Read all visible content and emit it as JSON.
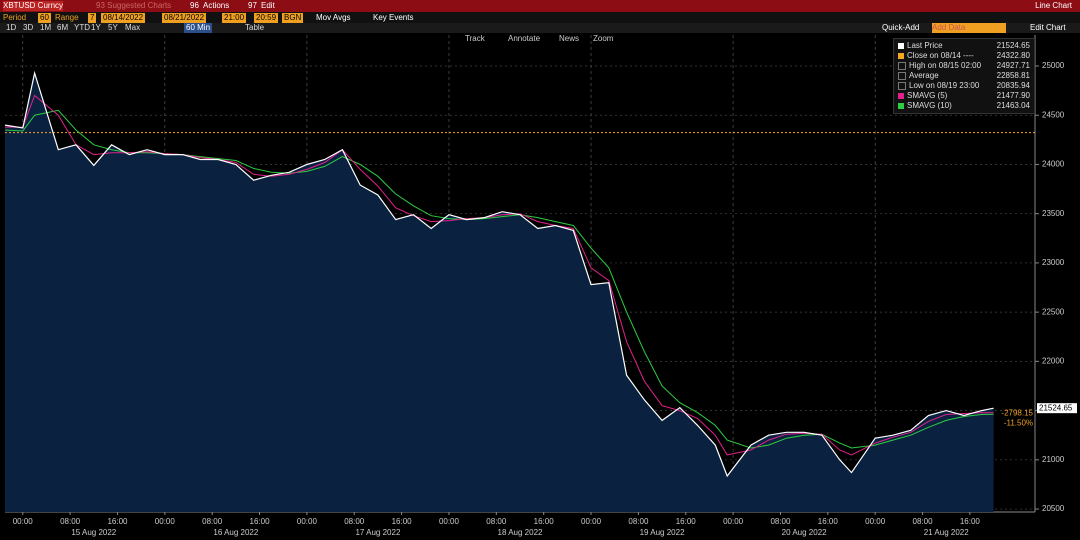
{
  "header": {
    "ticker": "XBTUSD Curncy",
    "suggested": "93 Suggested Charts",
    "actions_code": "96",
    "actions": "Actions",
    "edit_code": "97",
    "edit": "Edit",
    "view": "Line Chart"
  },
  "controls": {
    "period_label": "Period",
    "period": "60",
    "range_label": "Range",
    "range": "7",
    "start": "08/14/2022",
    "end": "08/21/2022",
    "start_time": "21:00",
    "end_time": "20:59",
    "source": "BGN",
    "mov_avgs": "Mov Avgs",
    "key_events": "Key Events",
    "periods": [
      "1D",
      "3D",
      "1M",
      "6M",
      "YTD",
      "1Y",
      "5Y",
      "Max"
    ],
    "interval": "60 Min",
    "table": "Table",
    "quick_add": "Quick-Add",
    "add_data": "Add Data",
    "edit_chart": "Edit Chart"
  },
  "tools": [
    "Track",
    "Annotate",
    "News",
    "Zoom"
  ],
  "chart_data": {
    "type": "line",
    "x": [
      -3,
      0,
      2,
      6,
      9,
      12,
      15,
      18,
      21,
      24,
      27,
      30,
      33,
      36,
      39,
      42,
      45,
      48,
      51,
      54,
      57,
      60,
      63,
      66,
      69,
      72,
      75,
      78,
      81,
      84,
      87,
      90,
      93,
      96,
      99,
      102,
      105,
      108,
      111,
      114,
      117,
      119,
      123,
      126,
      129,
      132,
      135,
      138,
      140,
      144,
      147,
      150,
      153,
      156,
      159,
      162,
      164
    ],
    "series": [
      {
        "name": "Last Price",
        "color": "#ffffff",
        "legend_value": "21524.65",
        "values": [
          24400,
          24370,
          24927.71,
          24150,
          24200,
          23990,
          24200,
          24100,
          24150,
          24100,
          24100,
          24050,
          24050,
          24000,
          23840,
          23890,
          23920,
          24000,
          24050,
          24150,
          23790,
          23690,
          23440,
          23490,
          23350,
          23490,
          23440,
          23460,
          23520,
          23490,
          23350,
          23380,
          23330,
          22780,
          22800,
          21860,
          21610,
          21400,
          21530,
          21350,
          21150,
          20835.94,
          21150,
          21250,
          21280,
          21280,
          21250,
          21000,
          20870,
          21220,
          21250,
          21300,
          21450,
          21500,
          21450,
          21500,
          21524.65
        ]
      },
      {
        "name": "SMAVG (5)",
        "color": "#e0218a",
        "legend_value": "21477.90",
        "values": [
          24380,
          24380,
          24700,
          24500,
          24200,
          24100,
          24120,
          24120,
          24130,
          24110,
          24100,
          24070,
          24050,
          24020,
          23900,
          23880,
          23900,
          23950,
          24020,
          24150,
          23950,
          23780,
          23560,
          23480,
          23420,
          23430,
          23450,
          23460,
          23490,
          23500,
          23420,
          23380,
          23350,
          22950,
          22820,
          22200,
          21800,
          21550,
          21500,
          21420,
          21250,
          21050,
          21100,
          21200,
          21260,
          21270,
          21260,
          21100,
          21050,
          21170,
          21230,
          21280,
          21390,
          21460,
          21470,
          21480,
          21477.9
        ]
      },
      {
        "name": "SMAVG (10)",
        "color": "#2ecc40",
        "legend_value": "21463.04",
        "values": [
          24350,
          24340,
          24500,
          24550,
          24350,
          24200,
          24150,
          24120,
          24120,
          24110,
          24100,
          24080,
          24060,
          24040,
          23960,
          23920,
          23910,
          23930,
          23980,
          24080,
          24000,
          23880,
          23700,
          23580,
          23480,
          23450,
          23440,
          23450,
          23470,
          23490,
          23460,
          23420,
          23380,
          23150,
          22950,
          22500,
          22100,
          21750,
          21580,
          21480,
          21350,
          21200,
          21120,
          21150,
          21220,
          21250,
          21260,
          21170,
          21120,
          21150,
          21200,
          21250,
          21330,
          21400,
          21440,
          21460,
          21463.04
        ]
      }
    ],
    "close_line": {
      "value": 24322.8,
      "color": "#f5a623"
    },
    "stats": [
      {
        "label": "Close on 08/14 ----",
        "value": "24322.80"
      },
      {
        "label": "High on 08/15 02:00",
        "value": "24927.71"
      },
      {
        "label": "Average",
        "value": "22858.81"
      },
      {
        "label": "Low on 08/19 23:00",
        "value": "20835.94"
      }
    ],
    "change": "-2798.15",
    "change_pct": "-11.50%",
    "fill": "#0a2240",
    "xlim": [
      -3,
      171
    ],
    "xticks": [
      {
        "value": 0,
        "label": "00:00"
      },
      {
        "value": 8,
        "label": "08:00"
      },
      {
        "value": 16,
        "label": "16:00"
      },
      {
        "value": 24,
        "label": "00:00"
      },
      {
        "value": 32,
        "label": "08:00"
      },
      {
        "value": 40,
        "label": "16:00"
      },
      {
        "value": 48,
        "label": "00:00"
      },
      {
        "value": 56,
        "label": "08:00"
      },
      {
        "value": 64,
        "label": "16:00"
      },
      {
        "value": 72,
        "label": "00:00"
      },
      {
        "value": 80,
        "label": "08:00"
      },
      {
        "value": 88,
        "label": "16:00"
      },
      {
        "value": 96,
        "label": "00:00"
      },
      {
        "value": 104,
        "label": "08:00"
      },
      {
        "value": 112,
        "label": "16:00"
      },
      {
        "value": 120,
        "label": "00:00"
      },
      {
        "value": 128,
        "label": "08:00"
      },
      {
        "value": 136,
        "label": "16:00"
      },
      {
        "value": 144,
        "label": "00:00"
      },
      {
        "value": 152,
        "label": "08:00"
      },
      {
        "value": 160,
        "label": "16:00"
      }
    ],
    "date_labels": [
      {
        "value": 12,
        "label": "15 Aug 2022"
      },
      {
        "value": 36,
        "label": "16 Aug 2022"
      },
      {
        "value": 60,
        "label": "17 Aug 2022"
      },
      {
        "value": 84,
        "label": "18 Aug 2022"
      },
      {
        "value": 108,
        "label": "19 Aug 2022"
      },
      {
        "value": 132,
        "label": "20 Aug 2022"
      },
      {
        "value": 156,
        "label": "21 Aug 2022"
      }
    ],
    "ylim": [
      20470,
      25315
    ],
    "yticks": [
      20500,
      21000,
      21500,
      22000,
      22500,
      23000,
      23500,
      24000,
      24500,
      25000
    ],
    "grid": true
  }
}
